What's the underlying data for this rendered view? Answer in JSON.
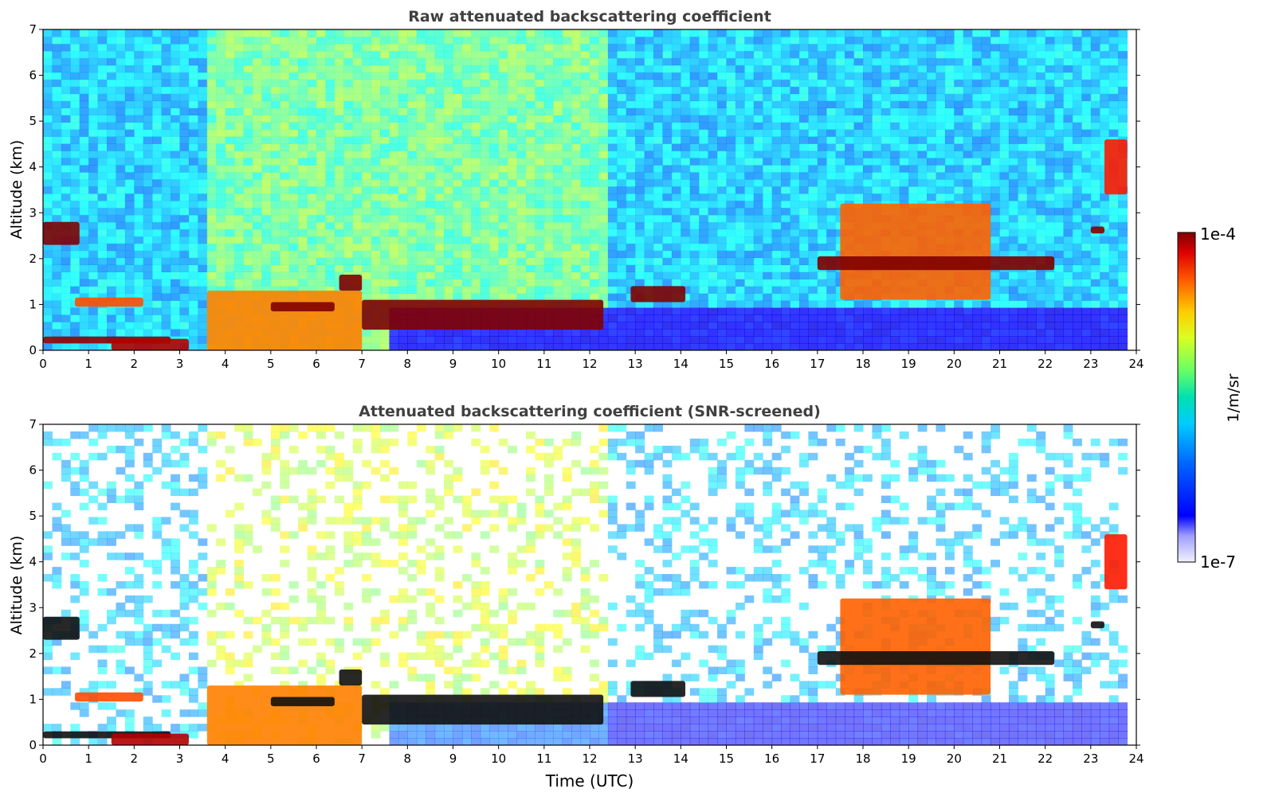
{
  "chart_data": [
    {
      "type": "heatmap",
      "title": "Raw attenuated backscattering coefficient",
      "xlabel": "",
      "ylabel": "Altitude (km)",
      "xlim": [
        0,
        24
      ],
      "ylim": [
        0,
        7
      ],
      "xticks": [
        "0",
        "1",
        "2",
        "3",
        "4",
        "5",
        "6",
        "7",
        "8",
        "9",
        "10",
        "11",
        "12",
        "13",
        "14",
        "15",
        "16",
        "17",
        "18",
        "19",
        "20",
        "21",
        "22",
        "23",
        "24"
      ],
      "yticks": [
        "0",
        "1",
        "2",
        "3",
        "4",
        "5",
        "6",
        "7"
      ],
      "data_end_time": 23.8,
      "features": [
        {
          "t0": 0.0,
          "t1": 0.8,
          "z0": 2.3,
          "z1": 2.8,
          "level": 1.0
        },
        {
          "t0": 0.0,
          "t1": 2.8,
          "z0": 0.15,
          "z1": 0.3,
          "level": 0.98
        },
        {
          "t0": 0.7,
          "t1": 2.2,
          "z0": 0.95,
          "z1": 1.15,
          "level": 0.8
        },
        {
          "t0": 1.5,
          "t1": 3.2,
          "z0": 0.0,
          "z1": 0.25,
          "level": 0.95
        },
        {
          "t0": 3.6,
          "t1": 7.0,
          "z0": 0.0,
          "z1": 1.3,
          "level": 0.75
        },
        {
          "t0": 5.0,
          "t1": 6.4,
          "z0": 0.85,
          "z1": 1.05,
          "level": 1.0
        },
        {
          "t0": 6.5,
          "t1": 7.0,
          "z0": 1.3,
          "z1": 1.65,
          "level": 1.0
        },
        {
          "t0": 7.0,
          "t1": 12.3,
          "z0": 0.45,
          "z1": 1.1,
          "level": 1.0
        },
        {
          "t0": 12.9,
          "t1": 14.1,
          "z0": 1.05,
          "z1": 1.4,
          "level": 1.0
        },
        {
          "t0": 17.5,
          "t1": 20.8,
          "z0": 1.1,
          "z1": 3.2,
          "level": 0.78
        },
        {
          "t0": 17.0,
          "t1": 22.2,
          "z0": 1.75,
          "z1": 2.05,
          "level": 1.0
        },
        {
          "t0": 23.3,
          "t1": 23.8,
          "z0": 3.4,
          "z1": 4.6,
          "level": 0.85
        },
        {
          "t0": 23.0,
          "t1": 23.3,
          "z0": 2.55,
          "z1": 2.7,
          "level": 1.0
        }
      ]
    },
    {
      "type": "heatmap",
      "title": "Attenuated backscattering coefficient (SNR-screened)",
      "xlabel": "Time (UTC)",
      "ylabel": "Altitude (km)",
      "xlim": [
        0,
        24
      ],
      "ylim": [
        0,
        7
      ],
      "xticks": [
        "0",
        "1",
        "2",
        "3",
        "4",
        "5",
        "6",
        "7",
        "8",
        "9",
        "10",
        "11",
        "12",
        "13",
        "14",
        "15",
        "16",
        "17",
        "18",
        "19",
        "20",
        "21",
        "22",
        "23",
        "24"
      ],
      "yticks": [
        "0",
        "1",
        "2",
        "3",
        "4",
        "5",
        "6",
        "7"
      ],
      "data_end_time": 23.8
    }
  ],
  "colorbar": {
    "label": "1/m/sr",
    "max_label": "1e-4",
    "min_label": "1e-7",
    "scale": "log",
    "range": [
      1e-07,
      0.0001
    ],
    "colormap": "jet"
  },
  "colors": {
    "title": "#404040",
    "axis": "#000000"
  }
}
